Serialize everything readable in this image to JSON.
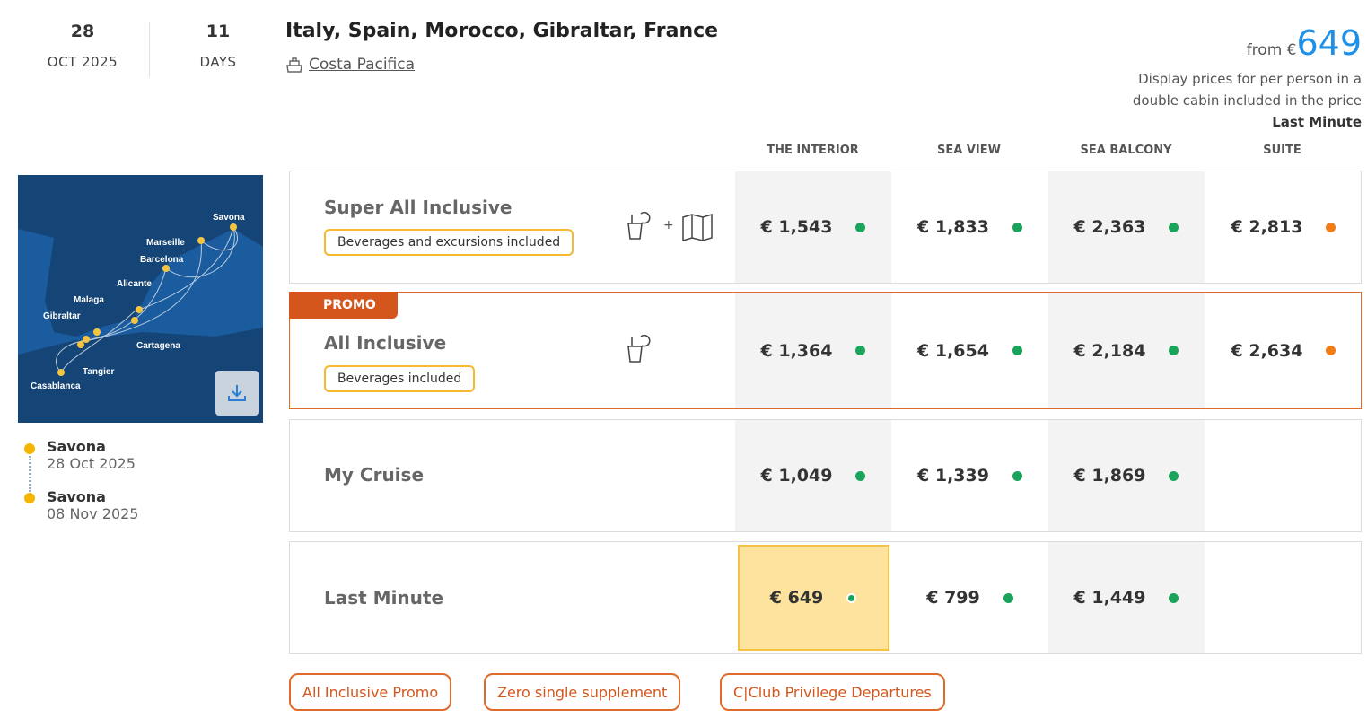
{
  "departure": {
    "day": "28",
    "month_year": "OCT 2025"
  },
  "duration": {
    "value": "11",
    "unit": "DAYS"
  },
  "title": "Italy, Spain, Morocco, Gibraltar, France",
  "ship": {
    "icon": "ship-icon",
    "name": "Costa Pacifica"
  },
  "price": {
    "from_label": "from €",
    "amount": "649",
    "note_line1": "Display prices for per person in a",
    "note_line2": "double cabin included in the price",
    "note_fare": "Last Minute"
  },
  "columns": [
    "THE INTERIOR",
    "SEA VIEW",
    "SEA BALCONY",
    "SUITE"
  ],
  "colors": {
    "available": "#1aa35b",
    "limited": "#f07d1a",
    "accent": "#1e90e8",
    "promo": "#d4561c",
    "highlight": "#fde39e"
  },
  "map": {
    "ports": [
      "Savona",
      "Marseille",
      "Barcelona",
      "Alicante",
      "Malaga",
      "Gibraltar",
      "Cartagena",
      "Tangier",
      "Casablanca"
    ],
    "download_icon": "download-icon"
  },
  "itinerary": [
    {
      "port": "Savona",
      "date": "28 Oct 2025"
    },
    {
      "port": "Savona",
      "date": "08 Nov 2025"
    }
  ],
  "rows": [
    {
      "name": "Super All Inclusive",
      "tag": "Beverages and excursions included",
      "icons": [
        "drinks-icon",
        "plus",
        "map-icon"
      ],
      "plus": "+",
      "prices": [
        {
          "v": "€ 1,543",
          "s": "available"
        },
        {
          "v": "€ 1,833",
          "s": "available"
        },
        {
          "v": "€ 2,363",
          "s": "available"
        },
        {
          "v": "€ 2,813",
          "s": "limited"
        }
      ]
    },
    {
      "name": "All Inclusive",
      "badge": "PROMO",
      "tag": "Beverages included",
      "icons": [
        "drinks-icon"
      ],
      "prices": [
        {
          "v": "€ 1,364",
          "s": "available"
        },
        {
          "v": "€ 1,654",
          "s": "available"
        },
        {
          "v": "€ 2,184",
          "s": "available"
        },
        {
          "v": "€ 2,634",
          "s": "limited"
        }
      ]
    },
    {
      "name": "My Cruise",
      "prices": [
        {
          "v": "€ 1,049",
          "s": "available"
        },
        {
          "v": "€ 1,339",
          "s": "available"
        },
        {
          "v": "€ 1,869",
          "s": "available"
        }
      ]
    },
    {
      "name": "Last Minute",
      "selected_column": "THE INTERIOR",
      "prices": [
        {
          "v": "€ 649",
          "s": "available"
        },
        {
          "v": "€ 799",
          "s": "available"
        },
        {
          "v": "€ 1,449",
          "s": "available"
        }
      ]
    }
  ],
  "promotions": [
    "All Inclusive Promo",
    "Zero single supplement",
    "C|Club Privilege Departures"
  ]
}
